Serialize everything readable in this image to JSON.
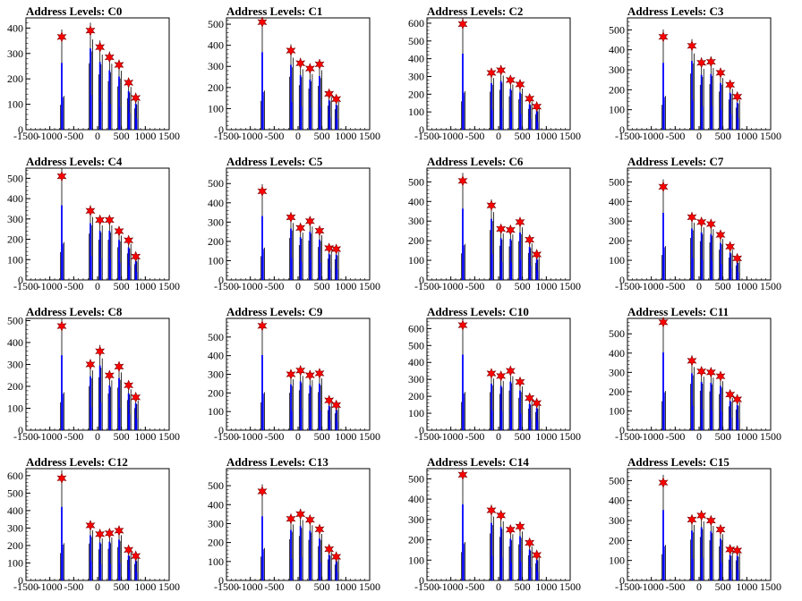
{
  "chart_data": [
    {
      "type": "bar",
      "title": "Address Levels: C0",
      "xlim": [
        -1500,
        1500
      ],
      "ylim": [
        0,
        440
      ],
      "xticks": [
        -1500,
        -1000,
        -500,
        0,
        500,
        1000,
        1500
      ],
      "xtick_labels": [
        "-1500",
        "-1000",
        "-500",
        "0",
        "500",
        "1000",
        "1500"
      ],
      "yticks": [
        0,
        100,
        200,
        300,
        400
      ],
      "peak_x": [
        -750,
        -150,
        50,
        250,
        450,
        650,
        800
      ],
      "peak_y": [
        365,
        390,
        325,
        285,
        255,
        185,
        125
      ]
    },
    {
      "type": "bar",
      "title": "Address Levels: C1",
      "xlim": [
        -1500,
        1500
      ],
      "ylim": [
        0,
        530
      ],
      "xticks": [
        -1500,
        -1000,
        -500,
        0,
        500,
        1000,
        1500
      ],
      "xtick_labels": [
        "-1500",
        "-1000",
        "-500",
        "0",
        "500",
        "1000",
        "1500"
      ],
      "yticks": [
        0,
        100,
        200,
        300,
        400,
        500
      ],
      "peak_x": [
        -750,
        -150,
        50,
        250,
        450,
        650,
        800
      ],
      "peak_y": [
        510,
        375,
        315,
        290,
        310,
        170,
        145
      ]
    },
    {
      "type": "bar",
      "title": "Address Levels: C2",
      "xlim": [
        -1500,
        1500
      ],
      "ylim": [
        0,
        630
      ],
      "xticks": [
        -1500,
        -1000,
        -500,
        0,
        500,
        1000,
        1500
      ],
      "xtick_labels": [
        "-1500",
        "-1000",
        "-500",
        "0",
        "500",
        "1000",
        "1500"
      ],
      "yticks": [
        0,
        100,
        200,
        300,
        400,
        500,
        600
      ],
      "peak_x": [
        -750,
        -150,
        50,
        250,
        450,
        650,
        800
      ],
      "peak_y": [
        595,
        320,
        335,
        280,
        255,
        175,
        130
      ]
    },
    {
      "type": "bar",
      "title": "Address Levels: C3",
      "xlim": [
        -1500,
        1500
      ],
      "ylim": [
        0,
        560
      ],
      "xticks": [
        -1500,
        -1000,
        -500,
        0,
        500,
        1000,
        1500
      ],
      "xtick_labels": [
        "-1500",
        "-1000",
        "-500",
        "0",
        "500",
        "1000",
        "1500"
      ],
      "yticks": [
        0,
        100,
        200,
        300,
        400,
        500
      ],
      "peak_x": [
        -750,
        -150,
        50,
        250,
        450,
        650,
        800
      ],
      "peak_y": [
        465,
        420,
        335,
        340,
        285,
        225,
        165
      ]
    },
    {
      "type": "bar",
      "title": "Address Levels: C4",
      "xlim": [
        -1500,
        1500
      ],
      "ylim": [
        0,
        550
      ],
      "xticks": [
        -1500,
        -1000,
        -500,
        0,
        500,
        1000,
        1500
      ],
      "xtick_labels": [
        "-1500",
        "-1000",
        "-500",
        "0",
        "500",
        "1000",
        "1500"
      ],
      "yticks": [
        0,
        100,
        200,
        300,
        400,
        500
      ],
      "peak_x": [
        -750,
        -150,
        50,
        250,
        450,
        650,
        800
      ],
      "peak_y": [
        510,
        340,
        295,
        295,
        240,
        195,
        115
      ]
    },
    {
      "type": "bar",
      "title": "Address Levels: C5",
      "xlim": [
        -1500,
        1500
      ],
      "ylim": [
        0,
        580
      ],
      "xticks": [
        -1500,
        -1000,
        -500,
        0,
        500,
        1000,
        1500
      ],
      "xtick_labels": [
        "-1500",
        "-1000",
        "-500",
        "0",
        "500",
        "1000",
        "1500"
      ],
      "yticks": [
        0,
        100,
        200,
        300,
        400,
        500
      ],
      "peak_x": [
        -750,
        -150,
        50,
        250,
        450,
        650,
        800
      ],
      "peak_y": [
        460,
        325,
        270,
        305,
        255,
        165,
        160
      ]
    },
    {
      "type": "bar",
      "title": "Address Levels: C6",
      "xlim": [
        -1500,
        1500
      ],
      "ylim": [
        0,
        570
      ],
      "xticks": [
        -1500,
        -1000,
        -500,
        0,
        500,
        1000,
        1500
      ],
      "xtick_labels": [
        "-1500",
        "-1000",
        "-500",
        "0",
        "500",
        "1000",
        "1500"
      ],
      "yticks": [
        0,
        100,
        200,
        300,
        400,
        500
      ],
      "peak_x": [
        -750,
        -150,
        50,
        250,
        450,
        650,
        800
      ],
      "peak_y": [
        505,
        380,
        260,
        255,
        295,
        205,
        130
      ]
    },
    {
      "type": "bar",
      "title": "Address Levels: C7",
      "xlim": [
        -1500,
        1500
      ],
      "ylim": [
        0,
        570
      ],
      "xticks": [
        -1500,
        -1000,
        -500,
        0,
        500,
        1000,
        1500
      ],
      "xtick_labels": [
        "-1500",
        "-1000",
        "-500",
        "0",
        "500",
        "1000",
        "1500"
      ],
      "yticks": [
        0,
        100,
        200,
        300,
        400,
        500
      ],
      "peak_x": [
        -750,
        -150,
        50,
        250,
        450,
        650,
        800
      ],
      "peak_y": [
        475,
        320,
        295,
        285,
        230,
        170,
        110
      ]
    },
    {
      "type": "bar",
      "title": "Address Levels: C8",
      "xlim": [
        -1500,
        1500
      ],
      "ylim": [
        0,
        510
      ],
      "xticks": [
        -1500,
        -1000,
        -500,
        0,
        500,
        1000,
        1500
      ],
      "xtick_labels": [
        "-1500",
        "-1000",
        "-500",
        "0",
        "500",
        "1000",
        "1500"
      ],
      "yticks": [
        0,
        100,
        200,
        300,
        400,
        500
      ],
      "peak_x": [
        -750,
        -150,
        50,
        250,
        450,
        650,
        800
      ],
      "peak_y": [
        475,
        300,
        360,
        250,
        290,
        205,
        150
      ]
    },
    {
      "type": "bar",
      "title": "Address Levels: C9",
      "xlim": [
        -1500,
        1500
      ],
      "ylim": [
        0,
        600
      ],
      "xticks": [
        -1500,
        -1000,
        -500,
        0,
        500,
        1000,
        1500
      ],
      "xtick_labels": [
        "-1500",
        "-1000",
        "-500",
        "0",
        "500",
        "1000",
        "1500"
      ],
      "yticks": [
        0,
        100,
        200,
        300,
        400,
        500
      ],
      "peak_x": [
        -750,
        -150,
        50,
        250,
        450,
        650,
        800
      ],
      "peak_y": [
        560,
        300,
        320,
        295,
        305,
        160,
        135
      ]
    },
    {
      "type": "bar",
      "title": "Address Levels: C10",
      "xlim": [
        -1500,
        1500
      ],
      "ylim": [
        0,
        660
      ],
      "xticks": [
        -1500,
        -1000,
        -500,
        0,
        500,
        1000,
        1500
      ],
      "xtick_labels": [
        "-1500",
        "-1000",
        "-500",
        "0",
        "500",
        "1000",
        "1500"
      ],
      "yticks": [
        0,
        100,
        200,
        300,
        400,
        500,
        600
      ],
      "peak_x": [
        -750,
        -150,
        50,
        250,
        450,
        650,
        800
      ],
      "peak_y": [
        620,
        335,
        320,
        350,
        285,
        190,
        160
      ]
    },
    {
      "type": "bar",
      "title": "Address Levels: C11",
      "xlim": [
        -1500,
        1500
      ],
      "ylim": [
        0,
        580
      ],
      "xticks": [
        -1500,
        -1000,
        -500,
        0,
        500,
        1000,
        1500
      ],
      "xtick_labels": [
        "-1500",
        "-1000",
        "-500",
        "0",
        "500",
        "1000",
        "1500"
      ],
      "yticks": [
        0,
        100,
        200,
        300,
        400,
        500
      ],
      "peak_x": [
        -750,
        -150,
        50,
        250,
        450,
        650,
        800
      ],
      "peak_y": [
        560,
        360,
        305,
        300,
        280,
        185,
        160
      ]
    },
    {
      "type": "bar",
      "title": "Address Levels: C12",
      "xlim": [
        -1500,
        1500
      ],
      "ylim": [
        0,
        640
      ],
      "xticks": [
        -1500,
        -1000,
        -500,
        0,
        500,
        1000,
        1500
      ],
      "xtick_labels": [
        "-1500",
        "-1000",
        "-500",
        "0",
        "500",
        "1000",
        "1500"
      ],
      "yticks": [
        0,
        100,
        200,
        300,
        400,
        500,
        600
      ],
      "peak_x": [
        -750,
        -150,
        50,
        250,
        450,
        650,
        800
      ],
      "peak_y": [
        585,
        315,
        265,
        270,
        285,
        175,
        140
      ]
    },
    {
      "type": "bar",
      "title": "Address Levels: C13",
      "xlim": [
        -1500,
        1500
      ],
      "ylim": [
        0,
        590
      ],
      "xticks": [
        -1500,
        -1000,
        -500,
        0,
        500,
        1000,
        1500
      ],
      "xtick_labels": [
        "-1500",
        "-1000",
        "-500",
        "0",
        "500",
        "1000",
        "1500"
      ],
      "yticks": [
        0,
        100,
        200,
        300,
        400,
        500
      ],
      "peak_x": [
        -750,
        -150,
        50,
        250,
        450,
        650,
        800
      ],
      "peak_y": [
        470,
        325,
        350,
        320,
        270,
        165,
        125
      ]
    },
    {
      "type": "bar",
      "title": "Address Levels: C14",
      "xlim": [
        -1500,
        1500
      ],
      "ylim": [
        0,
        550
      ],
      "xticks": [
        -1500,
        -1000,
        -500,
        0,
        500,
        1000,
        1500
      ],
      "xtick_labels": [
        "-1500",
        "-1000",
        "-500",
        "0",
        "500",
        "1000",
        "1500"
      ],
      "yticks": [
        0,
        100,
        200,
        300,
        400,
        500
      ],
      "peak_x": [
        -750,
        -150,
        50,
        250,
        450,
        650,
        800
      ],
      "peak_y": [
        520,
        345,
        320,
        250,
        265,
        185,
        125
      ]
    },
    {
      "type": "bar",
      "title": "Address Levels: C15",
      "xlim": [
        -1500,
        1500
      ],
      "ylim": [
        0,
        560
      ],
      "xticks": [
        -1500,
        -1000,
        -500,
        0,
        500,
        1000,
        1500
      ],
      "xtick_labels": [
        "-1500",
        "-1000",
        "-500",
        "0",
        "500",
        "1000",
        "1500"
      ],
      "yticks": [
        0,
        100,
        200,
        300,
        400,
        500
      ],
      "peak_x": [
        -750,
        -150,
        50,
        250,
        450,
        650,
        800
      ],
      "peak_y": [
        490,
        305,
        325,
        300,
        255,
        155,
        150
      ]
    }
  ],
  "colors": {
    "histogram": "#0000ff",
    "envelope": "#000000",
    "marker": "#ff0000",
    "marker_edge": "#7a0000"
  }
}
